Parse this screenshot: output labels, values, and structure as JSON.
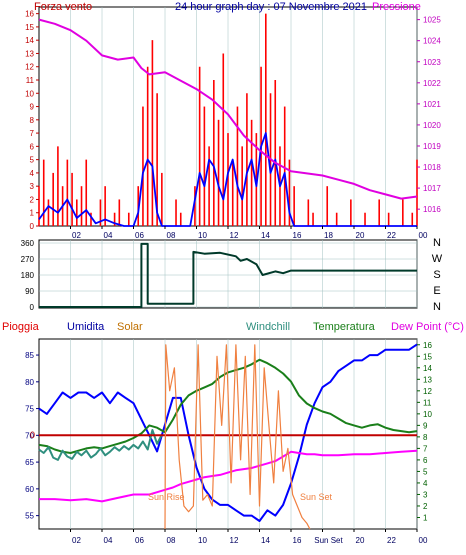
{
  "colors": {
    "wind": "#ff0000",
    "gust_avg": "#0000ff",
    "pressure": "#e000e0",
    "direction": "#003a2a",
    "rain": "#c00000",
    "humidity": "#0000ff",
    "solar": "#f08040",
    "windchill": "#2f8f7f",
    "temperature": "#1a7f1a",
    "dewpoint": "#ff00ff",
    "frame": "#000000",
    "grid": "#a0c0c0"
  },
  "chart_data": [
    {
      "type": "line",
      "title": "24 hour graph day : 07 Novembre 2021",
      "left_label": "Forza vento",
      "right_label": "Pressione",
      "xlim": [
        0,
        24
      ],
      "x_ticks": [
        "02",
        "04",
        "06",
        "08",
        "10",
        "12",
        "14",
        "16",
        "18",
        "20",
        "22",
        "00"
      ],
      "ylim": [
        0,
        16.5
      ],
      "y_ticks": [
        "0",
        "1",
        "2",
        "3",
        "4",
        "5",
        "6",
        "7",
        "8",
        "9",
        "10",
        "11",
        "12",
        "13",
        "14",
        "15",
        "16"
      ],
      "y2lim": [
        1015.2,
        1025.6
      ],
      "y2_ticks": [
        "1016",
        "1017",
        "1018",
        "1019",
        "1020",
        "1021",
        "1022",
        "1023",
        "1024",
        "1025"
      ],
      "series": [
        {
          "key": "wind_gust",
          "x": [
            0,
            0.3,
            0.6,
            0.9,
            1.2,
            1.5,
            1.8,
            2.1,
            2.4,
            2.7,
            3,
            3.3,
            3.6,
            3.9,
            4.2,
            4.5,
            4.8,
            5.1,
            5.4,
            5.7,
            6,
            6.3,
            6.6,
            6.9,
            7.2,
            7.5,
            7.8,
            8.1,
            8.4,
            8.7,
            9,
            9.3,
            9.6,
            9.9,
            10.2,
            10.5,
            10.8,
            11.1,
            11.4,
            11.7,
            12,
            12.3,
            12.6,
            12.9,
            13.2,
            13.5,
            13.8,
            14.1,
            14.4,
            14.7,
            15,
            15.3,
            15.6,
            15.9,
            16.2,
            16.5,
            16.8,
            17.1,
            17.4,
            17.7,
            18,
            18.3,
            18.6,
            18.9,
            19.2,
            19.5,
            19.8,
            20.1,
            20.4,
            20.7,
            21,
            21.3,
            21.6,
            21.9,
            22.2,
            22.5,
            22.8,
            23.1,
            23.4,
            23.7,
            24
          ],
          "values": [
            3,
            5,
            2,
            4,
            6,
            3,
            5,
            4,
            2,
            3,
            5,
            1,
            0,
            2,
            3,
            0,
            1,
            2,
            0,
            1,
            0,
            3,
            9,
            12,
            14,
            10,
            4,
            0,
            0,
            2,
            1,
            0,
            0,
            3,
            12,
            9,
            6,
            11,
            8,
            13,
            7,
            5,
            9,
            6,
            10,
            8,
            7,
            12,
            16,
            10,
            11,
            6,
            9,
            5,
            3,
            0,
            0,
            2,
            1,
            0,
            0,
            3,
            0,
            1,
            0,
            0,
            2,
            0,
            0,
            1,
            0,
            0,
            2,
            0,
            1,
            0,
            0,
            2,
            0,
            1,
            5
          ]
        },
        {
          "key": "wind_avg",
          "x": [
            0,
            0.6,
            1.2,
            1.8,
            2.4,
            3,
            3.6,
            4.2,
            4.8,
            5.4,
            6,
            6.3,
            6.6,
            6.9,
            7.2,
            7.5,
            7.8,
            8.4,
            9,
            9.6,
            10.2,
            10.5,
            10.8,
            11.1,
            11.4,
            11.7,
            12,
            12.3,
            12.6,
            12.9,
            13.2,
            13.5,
            13.8,
            14.1,
            14.4,
            14.7,
            15,
            15.3,
            15.6,
            15.9,
            16.2,
            24
          ],
          "values": [
            0.5,
            1.5,
            1,
            2,
            0.6,
            1.2,
            0.2,
            0.5,
            0.2,
            0,
            0,
            1,
            4,
            5,
            4.5,
            1,
            0,
            0,
            0,
            0,
            4,
            3,
            5,
            4.5,
            3,
            2,
            4,
            5,
            3,
            2,
            4,
            5,
            3,
            6,
            7,
            4,
            5,
            3,
            4,
            1,
            0,
            0
          ]
        },
        {
          "key": "pressure",
          "x": [
            0,
            1,
            2,
            3,
            4,
            5,
            6,
            6.5,
            7,
            8,
            9,
            10,
            11,
            12,
            13,
            14,
            15,
            16,
            17,
            18,
            19,
            20,
            21,
            22,
            23,
            24
          ],
          "values": [
            1025.0,
            1024.8,
            1024.5,
            1024.0,
            1023.3,
            1023.1,
            1023.2,
            1022.7,
            1022.4,
            1022.5,
            1022.1,
            1021.7,
            1021.2,
            1020.5,
            1019.5,
            1018.8,
            1018.2,
            1017.8,
            1017.7,
            1017.6,
            1017.4,
            1017.2,
            1016.9,
            1016.7,
            1016.5,
            1016.6
          ]
        }
      ]
    },
    {
      "type": "line",
      "title": "",
      "xlim": [
        0,
        24
      ],
      "ylim": [
        0,
        360
      ],
      "y_ticks": [
        "0",
        "90",
        "180",
        "270",
        "360"
      ],
      "compass_labels": [
        "N",
        "W",
        "S",
        "E",
        "N"
      ],
      "series": [
        {
          "key": "direction",
          "x": [
            0,
            6.5,
            6.5,
            6.9,
            6.9,
            9.8,
            9.8,
            10.5,
            11.5,
            12.5,
            12.8,
            13.2,
            13.8,
            14.2,
            15,
            15.5,
            16,
            24
          ],
          "values": [
            0,
            0,
            355,
            355,
            18,
            18,
            310,
            300,
            305,
            285,
            260,
            270,
            240,
            180,
            200,
            190,
            205,
            205
          ]
        }
      ]
    },
    {
      "type": "line",
      "title": "",
      "labels": {
        "rain": "Pioggia",
        "humidity": "Umidita",
        "solar": "Solar",
        "windchill": "Windchill",
        "temperature": "Temperatura",
        "dewpoint": "Dew Point (°C)"
      },
      "xlim": [
        0,
        24
      ],
      "x_ticks": [
        "02",
        "04",
        "06",
        "08",
        "10",
        "12",
        "14",
        "16",
        "Sun Set",
        "20",
        "22",
        "00"
      ],
      "ylim": [
        52.5,
        88
      ],
      "y_ticks": [
        "55",
        "60",
        "65",
        "70",
        "75",
        "80",
        "85"
      ],
      "y2lim": [
        0,
        16.5
      ],
      "y2_ticks": [
        "1",
        "2",
        "3",
        "4",
        "5",
        "6",
        "7",
        "8",
        "9",
        "10",
        "11",
        "12",
        "13",
        "14",
        "15",
        "16"
      ],
      "rain_zero_label": "0",
      "annotations": {
        "sunrise": "Sun Rise",
        "sunset": "Sun Set"
      },
      "series": [
        {
          "key": "humidity",
          "axis": "left",
          "x": [
            0,
            0.5,
            1,
            1.5,
            2,
            2.5,
            3,
            3.5,
            4,
            4.5,
            5,
            5.5,
            6,
            6.5,
            7,
            7.5,
            8,
            8.5,
            9,
            9.5,
            10,
            10.5,
            11,
            11.5,
            12,
            12.5,
            13,
            13.5,
            14,
            14.5,
            15,
            15.5,
            16,
            16.5,
            17,
            17.5,
            18,
            18.5,
            19,
            19.5,
            20,
            20.5,
            21,
            21.5,
            22,
            22.5,
            23,
            23.5,
            24
          ],
          "values": [
            75,
            74,
            76,
            78,
            77,
            78,
            78,
            77,
            78,
            76,
            78,
            77,
            76,
            73,
            70,
            67,
            72,
            77,
            77,
            70,
            64,
            60,
            58,
            57,
            57,
            56,
            55,
            55,
            54,
            56,
            55,
            57,
            61,
            66,
            72,
            76,
            79,
            80,
            82,
            83,
            84,
            84,
            85,
            85,
            86,
            86,
            86,
            86,
            87
          ]
        },
        {
          "key": "temperature",
          "axis": "right",
          "x": [
            0,
            0.5,
            1,
            1.5,
            2,
            2.5,
            3,
            3.5,
            4,
            4.5,
            5,
            5.5,
            6,
            6.5,
            7,
            7.5,
            8,
            8.5,
            9,
            9.5,
            10,
            10.5,
            11,
            11.5,
            12,
            12.5,
            13,
            13.5,
            14,
            14.5,
            15,
            15.5,
            16,
            16.5,
            17,
            17.5,
            18,
            18.5,
            19,
            19.5,
            20,
            20.5,
            21,
            21.5,
            22,
            22.5,
            23,
            23.5,
            24
          ],
          "values": [
            7.3,
            7.2,
            6.9,
            6.7,
            6.6,
            6.8,
            7.0,
            7.1,
            7.0,
            7.2,
            7.4,
            7.6,
            7.9,
            8.3,
            9.0,
            8.8,
            8.4,
            9.5,
            10.8,
            11.6,
            12.0,
            12.3,
            12.6,
            13.2,
            13.6,
            13.8,
            14.0,
            14.3,
            14.7,
            14.4,
            14.0,
            13.5,
            12.8,
            11.6,
            10.9,
            10.5,
            10.2,
            10.0,
            9.6,
            9.2,
            9.0,
            8.8,
            9.0,
            9.1,
            8.8,
            8.6,
            8.5,
            8.4,
            8.5
          ]
        },
        {
          "key": "windchill",
          "axis": "right",
          "x": [
            0,
            0.3,
            0.6,
            0.9,
            1.2,
            1.5,
            1.8,
            2.1,
            2.4,
            2.7,
            3,
            3.3,
            3.6,
            3.9,
            4.2,
            4.5,
            4.8,
            5.1,
            5.4,
            5.7,
            6,
            6.3,
            6.6,
            6.9,
            7.2,
            7.5,
            7.8
          ],
          "values": [
            6.9,
            6.6,
            7.1,
            6.2,
            6.0,
            6.8,
            6.3,
            6.1,
            6.7,
            6.4,
            6.8,
            6.2,
            6.5,
            7.0,
            6.4,
            6.7,
            7.1,
            6.8,
            7.2,
            6.9,
            7.3,
            7.0,
            7.6,
            6.9,
            8.6,
            7.4,
            8.2
          ]
        },
        {
          "key": "dewpoint",
          "axis": "right",
          "x": [
            0,
            1,
            2,
            3,
            4,
            5,
            6,
            6.5,
            7,
            7.5,
            8,
            8.5,
            9,
            9.5,
            10,
            10.5,
            11,
            11.5,
            12,
            12.5,
            13,
            13.5,
            14,
            14.5,
            15,
            15.5,
            16,
            16.5,
            17,
            17.5,
            18,
            19,
            20,
            21,
            22,
            23,
            24
          ],
          "values": [
            2.6,
            2.6,
            2.5,
            2.6,
            2.4,
            2.7,
            3.0,
            3.0,
            3.0,
            3.2,
            3.4,
            3.6,
            3.9,
            4.1,
            4.3,
            4.5,
            4.6,
            4.7,
            4.9,
            5.1,
            5.2,
            5.3,
            5.5,
            5.7,
            5.9,
            6.3,
            6.7,
            6.6,
            6.5,
            6.5,
            6.4,
            6.4,
            6.5,
            6.5,
            6.6,
            6.7,
            6.8
          ]
        },
        {
          "key": "rain",
          "axis": "left",
          "x": [
            0,
            24
          ],
          "values": [
            70,
            70
          ]
        },
        {
          "key": "solar",
          "axis": "right",
          "x": [
            8,
            8.05,
            8.3,
            8.6,
            8.9,
            9.2,
            9.5,
            9.8,
            10.1,
            10.4,
            10.7,
            11,
            11.3,
            11.6,
            11.9,
            12.2,
            12.5,
            12.8,
            13.1,
            13.4,
            13.7,
            14,
            14.3,
            14.6,
            14.9,
            15.2,
            15.5,
            15.8,
            16.1,
            16.4,
            16.7,
            17,
            17.2
          ],
          "values": [
            0,
            16,
            12,
            14,
            6,
            2,
            1.5,
            2,
            16,
            2.5,
            3,
            2,
            15,
            9,
            16,
            4,
            16,
            6,
            15,
            3,
            16,
            2,
            14,
            9,
            4,
            12,
            5,
            7,
            3,
            2,
            1,
            0.5,
            0
          ]
        }
      ]
    }
  ]
}
